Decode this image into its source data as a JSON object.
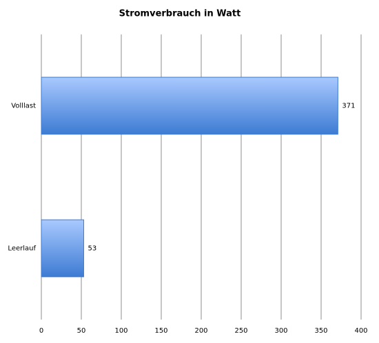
{
  "chart_data": {
    "type": "bar",
    "orientation": "horizontal",
    "title": "Stromverbrauch in Watt",
    "categories": [
      "Volllast",
      "Leerlauf"
    ],
    "values": [
      371,
      53
    ],
    "color": "#3d7bd3",
    "xlim": [
      0,
      400
    ],
    "xticks": [
      0,
      50,
      100,
      150,
      200,
      250,
      300,
      350,
      400
    ],
    "grid": true
  }
}
